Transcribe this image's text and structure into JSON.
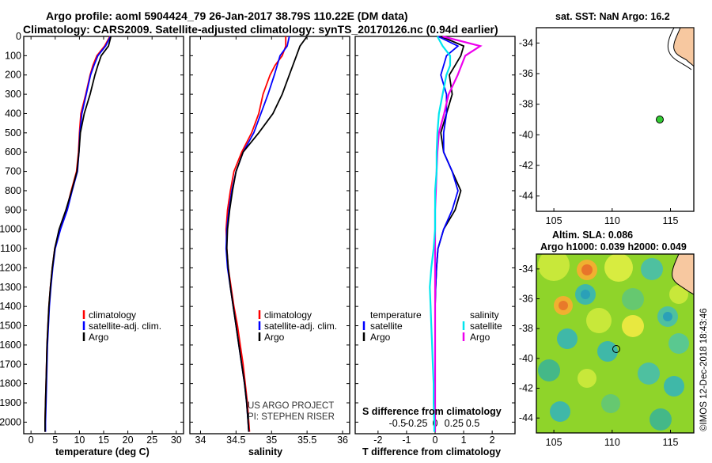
{
  "header": {
    "line1": "Argo profile: aoml 5904424_79 26-Jan-2017 38.79S 110.22E (DM data)",
    "line2": "Climatology: CARS2009. Satellite-adjusted climatology: synTS_20170126.nc (0.94d earlier)"
  },
  "colors": {
    "climatology": "#ff0000",
    "satellite": "#0000ff",
    "argo": "#000000",
    "sat_salinity": "#00e5ee",
    "clim_salinity": "#ee00ee",
    "land": "#f7c8a0"
  },
  "depth_axis": {
    "ticks": [
      "0",
      "100",
      "200",
      "300",
      "400",
      "500",
      "600",
      "700",
      "800",
      "900",
      "1000",
      "1100",
      "1200",
      "1300",
      "1400",
      "1500",
      "1600",
      "1700",
      "1800",
      "1900",
      "2000"
    ]
  },
  "legend": {
    "clim": "climatology",
    "sat": "satellite-adj. clim.",
    "argo": "Argo"
  },
  "legend3": {
    "temperature": "temperature",
    "salinity": "salinity",
    "satellite": "satellite",
    "argo": "Argo"
  },
  "credits": {
    "line1": "US ARGO PROJECT",
    "line2": "PI: STEPHEN RISER"
  },
  "map_top": {
    "title": "sat. SST: NaN Argo: 16.2",
    "x_ticks": [
      "105",
      "110",
      "115"
    ],
    "y_ticks": [
      "-34",
      "-36",
      "-38",
      "-40",
      "-42",
      "-44"
    ]
  },
  "map_bottom": {
    "title1": "Altim. SLA: 0.086",
    "title2": "Argo h1000: 0.039 h2000: 0.049",
    "x_ticks": [
      "105",
      "110",
      "115"
    ],
    "y_ticks": [
      "-34",
      "-36",
      "-38",
      "-40",
      "-42",
      "-44"
    ]
  },
  "stamp": "©IMOS 12-Dec-2018 18:43:46",
  "chart_data": [
    {
      "type": "line",
      "title": "temperature",
      "xlabel": "temperature (deg C)",
      "ylabel": "depth",
      "xlim": [
        -1.5,
        31.5
      ],
      "ylim": [
        2060,
        0
      ],
      "x_ticks": [
        "0",
        "5",
        "10",
        "15",
        "20",
        "25",
        "30"
      ],
      "depth": [
        0,
        50,
        100,
        150,
        200,
        300,
        400,
        500,
        600,
        700,
        800,
        900,
        1000,
        1100,
        1200,
        1300,
        1400,
        1500,
        1600,
        1700,
        1800,
        1900,
        2000,
        2050
      ],
      "series": [
        {
          "name": "climatology",
          "values": [
            16.3,
            15.2,
            13.6,
            12.8,
            12.2,
            11.3,
            10.3,
            10.0,
            9.8,
            9.4,
            8.3,
            7.3,
            5.9,
            4.9,
            4.4,
            4.0,
            3.7,
            3.5,
            3.3,
            3.2,
            3.1,
            3.0,
            2.9,
            2.9
          ]
        },
        {
          "name": "satellite-adj. clim.",
          "values": [
            16.4,
            15.4,
            13.8,
            13.0,
            12.3,
            11.4,
            10.5,
            10.1,
            9.9,
            9.6,
            8.5,
            7.5,
            6.1,
            5.0,
            4.5,
            4.1,
            3.8,
            3.6,
            3.4,
            3.3,
            3.2,
            3.1,
            3.0,
            3.0
          ]
        },
        {
          "name": "Argo",
          "values": [
            16.5,
            16.0,
            14.5,
            13.8,
            13.2,
            12.2,
            11.0,
            10.2,
            9.9,
            9.5,
            8.4,
            7.2,
            5.8,
            4.9,
            4.4,
            4.0,
            3.7,
            3.5,
            3.3,
            3.2,
            3.1,
            3.0,
            2.9,
            2.9
          ]
        }
      ]
    },
    {
      "type": "line",
      "title": "salinity",
      "xlabel": "salinity",
      "ylabel": "depth",
      "xlim": [
        33.85,
        36.1
      ],
      "ylim": [
        2060,
        0
      ],
      "x_ticks": [
        "34",
        "34.5",
        "35",
        "35.5",
        "36"
      ],
      "depth": [
        0,
        50,
        100,
        150,
        200,
        300,
        400,
        500,
        600,
        700,
        800,
        900,
        1000,
        1100,
        1200,
        1300,
        1400,
        1500,
        1600,
        1700,
        1800,
        1900,
        2000,
        2050
      ],
      "series": [
        {
          "name": "climatology",
          "values": [
            35.2,
            35.2,
            35.15,
            35.05,
            34.98,
            34.88,
            34.82,
            34.72,
            34.58,
            34.47,
            34.42,
            34.38,
            34.36,
            34.37,
            34.39,
            34.43,
            34.47,
            34.52,
            34.56,
            34.6,
            34.63,
            34.66,
            34.68,
            34.69
          ]
        },
        {
          "name": "satellite-adj. clim.",
          "values": [
            35.25,
            35.22,
            35.12,
            35.08,
            35.04,
            34.95,
            34.85,
            34.75,
            34.6,
            34.5,
            34.44,
            34.4,
            34.37,
            34.36,
            34.38,
            34.42,
            34.46,
            34.5,
            34.54,
            34.58,
            34.62,
            34.65,
            34.67,
            34.68
          ]
        },
        {
          "name": "Argo",
          "values": [
            35.5,
            35.4,
            35.35,
            35.3,
            35.25,
            35.15,
            35.02,
            34.82,
            34.6,
            34.5,
            34.45,
            34.41,
            34.38,
            34.37,
            34.39,
            34.42,
            34.46,
            34.5,
            34.54,
            34.58,
            34.62,
            34.65,
            34.67,
            34.68
          ]
        }
      ]
    },
    {
      "type": "line",
      "title": "difference from climatology",
      "xlabel": "T difference from climatology",
      "top_label": "S difference from climatology",
      "xlim": [
        -2.8,
        2.8
      ],
      "ylim": [
        2060,
        0
      ],
      "x_ticks": [
        "-2",
        "-1",
        "0",
        "1",
        "2"
      ],
      "s_ticks": [
        "-0.5",
        "-0.25",
        "0",
        "0.25",
        "0.5"
      ],
      "depth": [
        0,
        50,
        100,
        150,
        200,
        300,
        400,
        500,
        600,
        700,
        800,
        900,
        1000,
        1100,
        1200,
        1300,
        1400,
        1500,
        1600,
        1700,
        1800,
        1900,
        2000,
        2050
      ],
      "series": [
        {
          "name": "temperature satellite",
          "values": [
            0.1,
            0.8,
            0.4,
            0.3,
            0.2,
            0.4,
            0.4,
            0.3,
            0.3,
            0.6,
            0.8,
            0.6,
            0.3,
            0.1,
            0.05,
            0.02,
            0.0,
            0.0,
            0.0,
            0.0,
            0.0,
            0.0,
            0.0,
            0.0
          ]
        },
        {
          "name": "temperature Argo",
          "values": [
            0.2,
            1.0,
            0.9,
            0.7,
            0.5,
            0.6,
            0.4,
            0.2,
            0.3,
            0.6,
            0.9,
            0.7,
            0.3,
            0.1,
            0.05,
            0.02,
            0.0,
            0.0,
            0.0,
            0.0,
            0.0,
            0.0,
            0.0,
            0.0
          ]
        },
        {
          "name": "salinity satellite",
          "values": [
            0.03,
            0.1,
            0.2,
            0.2,
            0.15,
            0.1,
            0.05,
            0.03,
            0.02,
            0.02,
            0.0,
            0.0,
            0.0,
            -0.02,
            -0.05,
            -0.07,
            -0.06,
            -0.05,
            -0.04,
            -0.03,
            -0.02,
            -0.02,
            -0.01,
            -0.01
          ]
        },
        {
          "name": "salinity Argo",
          "values": [
            0.1,
            0.6,
            0.4,
            0.35,
            0.3,
            0.18,
            0.12,
            0.05,
            0.03,
            0.02,
            0.01,
            0.0,
            0.0,
            0.0,
            0.0,
            0.0,
            0.0,
            0.0,
            0.0,
            0.0,
            0.0,
            0.0,
            0.0,
            0.0
          ]
        }
      ]
    },
    {
      "type": "scatter",
      "title": "sat. SST: NaN Argo: 16.2",
      "xlim": [
        103.5,
        117
      ],
      "ylim": [
        -45,
        -33
      ],
      "x_ticks": [
        "105",
        "110",
        "115"
      ],
      "y_ticks": [
        "-34",
        "-36",
        "-38",
        "-40",
        "-42",
        "-44"
      ],
      "points": [
        {
          "name": "Argo float",
          "lon": 110.22,
          "lat": -38.79
        }
      ]
    },
    {
      "type": "heatmap",
      "title": "Altim. SLA: 0.086",
      "subtitle": "Argo h1000: 0.039 h2000: 0.049",
      "xlim": [
        103.5,
        117
      ],
      "ylim": [
        -45,
        -33
      ],
      "x_ticks": [
        "105",
        "110",
        "115"
      ],
      "y_ticks": [
        "-34",
        "-36",
        "-38",
        "-40",
        "-42",
        "-44"
      ],
      "points": [
        {
          "name": "Argo float",
          "lon": 110.22,
          "lat": -38.79
        }
      ]
    }
  ]
}
